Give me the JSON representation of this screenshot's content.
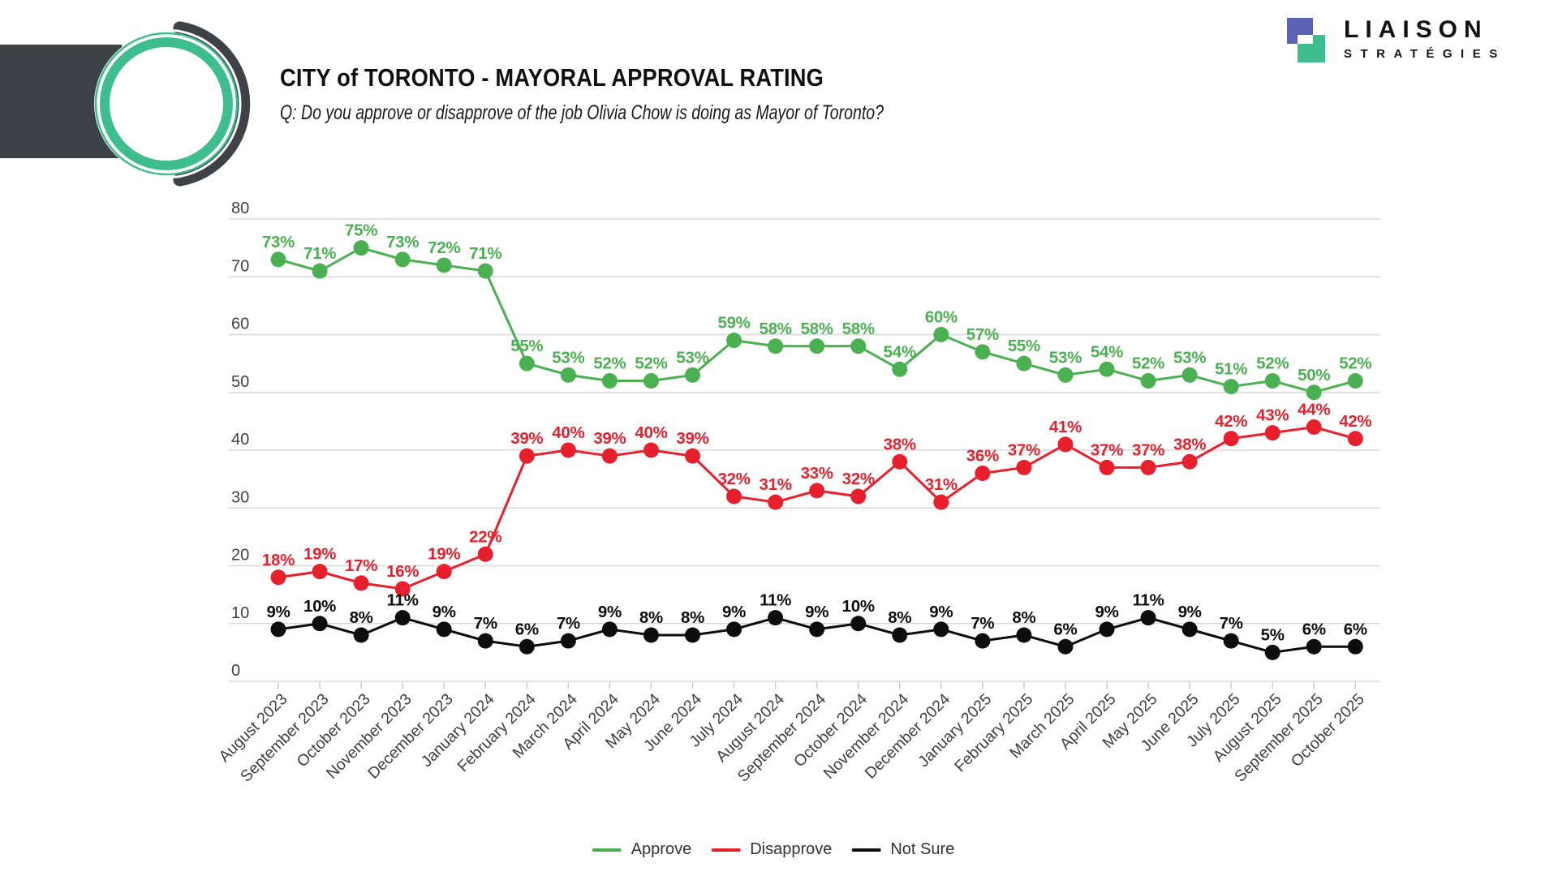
{
  "header": {
    "title": "CITY of TORONTO - MAYORAL APPROVAL RATING",
    "subtitle": "Q: Do you approve or disapprove of the job Olivia Chow is doing as Mayor of Toronto?"
  },
  "brand": {
    "line1": "LIAISON",
    "line2": "STRATÉGIES",
    "colors": {
      "blue": "#5a62b4",
      "green": "#3ebe8e",
      "dark": "#3e4145"
    }
  },
  "chart_data": {
    "type": "line",
    "title": "CITY of TORONTO - MAYORAL APPROVAL RATING",
    "categories": [
      "August 2023",
      "September 2023",
      "October 2023",
      "November 2023",
      "December 2023",
      "January 2024",
      "February 2024",
      "March 2024",
      "April 2024",
      "May 2024",
      "June 2024",
      "July 2024",
      "August 2024",
      "September 2024",
      "October 2024",
      "November 2024",
      "December 2024",
      "January 2025",
      "February 2025",
      "March 2025",
      "April 2025",
      "May 2025",
      "June 2025",
      "July 2025",
      "August 2025",
      "September 2025",
      "October 2025"
    ],
    "series": [
      {
        "name": "Approve",
        "color": "#4bb052",
        "values": [
          73,
          71,
          75,
          73,
          72,
          71,
          55,
          53,
          52,
          52,
          53,
          59,
          58,
          58,
          58,
          54,
          60,
          57,
          55,
          53,
          54,
          52,
          53,
          51,
          52,
          50,
          52
        ]
      },
      {
        "name": "Disapprove",
        "color": "#e8202d",
        "values": [
          18,
          19,
          17,
          16,
          19,
          22,
          39,
          40,
          39,
          40,
          39,
          32,
          31,
          33,
          32,
          38,
          31,
          36,
          37,
          41,
          37,
          37,
          38,
          42,
          43,
          44,
          42
        ]
      },
      {
        "name": "Not Sure",
        "color": "#0d0d0d",
        "values": [
          9,
          10,
          8,
          11,
          9,
          7,
          6,
          7,
          9,
          8,
          8,
          9,
          11,
          9,
          10,
          8,
          9,
          7,
          8,
          6,
          9,
          11,
          9,
          7,
          5,
          6,
          6
        ]
      }
    ],
    "label_suffix": "%",
    "ylim": [
      0,
      80
    ],
    "yticks": [
      0,
      10,
      20,
      30,
      40,
      50,
      60,
      70,
      80
    ],
    "grid": true,
    "legend_position": "bottom",
    "axis_colors": {
      "gridline": "#d8d8d8",
      "tick": "#c9c9c9",
      "y_label": "#3f4245",
      "x_label": "#3d3d3d"
    }
  }
}
